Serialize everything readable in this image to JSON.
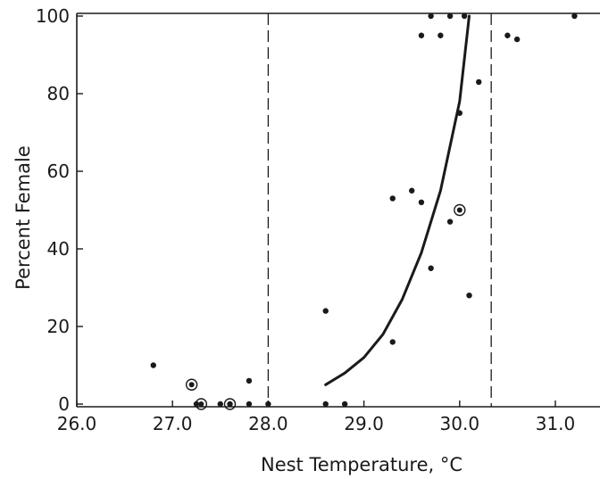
{
  "chart_data": {
    "type": "scatter",
    "xlabel": "Nest Temperature, °C",
    "ylabel": "Percent Female",
    "xlim": [
      26.0,
      31.5
    ],
    "ylim": [
      0,
      100
    ],
    "x_ticks": [
      26.0,
      27.0,
      28.0,
      29.0,
      30.0,
      31.0
    ],
    "x_tick_labels": [
      "26.0",
      "27.0",
      "28.0",
      "29.0",
      "30.0",
      "31.0"
    ],
    "y_ticks": [
      0,
      20,
      40,
      60,
      80,
      100
    ],
    "y_tick_labels": [
      "0",
      "20",
      "40",
      "60",
      "80",
      "100"
    ],
    "grid": false,
    "reference_lines_x": [
      28.0,
      30.33
    ],
    "points": [
      {
        "x": 26.8,
        "y": 10
      },
      {
        "x": 27.25,
        "y": 0
      },
      {
        "x": 27.5,
        "y": 0
      },
      {
        "x": 27.6,
        "y": 0
      },
      {
        "x": 27.8,
        "y": 6
      },
      {
        "x": 27.8,
        "y": 0
      },
      {
        "x": 28.0,
        "y": 0
      },
      {
        "x": 28.6,
        "y": 24
      },
      {
        "x": 28.6,
        "y": 0
      },
      {
        "x": 28.8,
        "y": 0
      },
      {
        "x": 29.3,
        "y": 53
      },
      {
        "x": 29.3,
        "y": 16
      },
      {
        "x": 29.5,
        "y": 55
      },
      {
        "x": 29.6,
        "y": 52
      },
      {
        "x": 29.6,
        "y": 95
      },
      {
        "x": 29.7,
        "y": 100
      },
      {
        "x": 29.7,
        "y": 35
      },
      {
        "x": 29.8,
        "y": 95
      },
      {
        "x": 29.9,
        "y": 100
      },
      {
        "x": 29.9,
        "y": 47
      },
      {
        "x": 30.0,
        "y": 75
      },
      {
        "x": 30.05,
        "y": 100
      },
      {
        "x": 30.1,
        "y": 28
      },
      {
        "x": 30.2,
        "y": 83
      },
      {
        "x": 30.5,
        "y": 95
      },
      {
        "x": 30.6,
        "y": 94
      },
      {
        "x": 31.2,
        "y": 100
      }
    ],
    "circled_points": [
      {
        "x": 27.2,
        "y": 5
      },
      {
        "x": 27.3,
        "y": 0
      },
      {
        "x": 27.6,
        "y": 0
      },
      {
        "x": 30.0,
        "y": 50
      }
    ],
    "fitted_curve": {
      "x": [
        28.6,
        28.8,
        29.0,
        29.2,
        29.4,
        29.6,
        29.8,
        30.0,
        30.1
      ],
      "y": [
        5,
        8,
        12,
        18,
        27,
        39,
        55,
        78,
        100
      ]
    },
    "colors": {
      "ink": "#1a1a1a",
      "background": "#ffffff"
    }
  }
}
